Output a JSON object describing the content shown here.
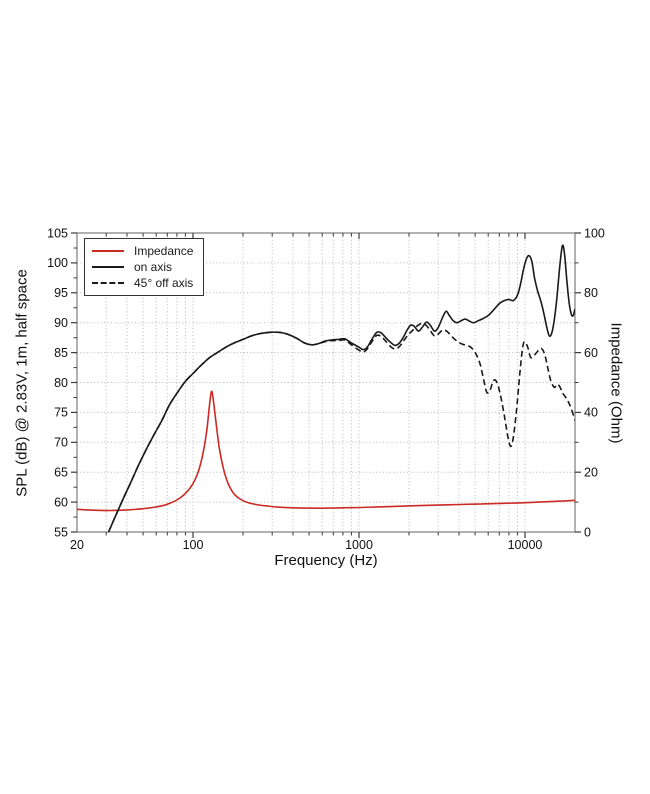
{
  "chart_data": {
    "type": "line",
    "title": "",
    "xlabel": "Frequency (Hz)",
    "ylabel_left": "SPL (dB) @ 2.83V, 1m, half space",
    "ylabel_right": "Impedance (Ohm)",
    "x_scale": "log",
    "xlim": [
      20,
      20000
    ],
    "ylim_left": [
      55,
      105
    ],
    "ylim_right": [
      0,
      100
    ],
    "x_ticks_major": [
      20,
      100,
      1000,
      10000
    ],
    "x_tick_labels": [
      "20",
      "100",
      "1000",
      "10000"
    ],
    "y_ticks_left": [
      55,
      60,
      65,
      70,
      75,
      80,
      85,
      90,
      95,
      100,
      105
    ],
    "y_tick_labels_left": [
      "55",
      "60",
      "65",
      "70",
      "75",
      "80",
      "85",
      "90",
      "95",
      "100",
      "105"
    ],
    "y_ticks_right": [
      0,
      20,
      40,
      60,
      80,
      100
    ],
    "y_tick_labels_right": [
      "0",
      "20",
      "40",
      "60",
      "80",
      "100"
    ],
    "grid": "dotted",
    "legend": {
      "position": "top-left",
      "entries": [
        {
          "label": "Impedance",
          "style": "red-solid"
        },
        {
          "label": "on axis",
          "style": "black-solid"
        },
        {
          "label": "45° off axis",
          "style": "black-dashed"
        }
      ]
    },
    "series": [
      {
        "name": "Impedance",
        "axis": "right",
        "unit": "Ohm",
        "color": "#cb2a25",
        "style": "solid",
        "points": [
          [
            20,
            7.6
          ],
          [
            25,
            7.3
          ],
          [
            32,
            7.2
          ],
          [
            40,
            7.4
          ],
          [
            50,
            7.8
          ],
          [
            60,
            8.4
          ],
          [
            70,
            9.3
          ],
          [
            80,
            10.7
          ],
          [
            90,
            12.9
          ],
          [
            100,
            16.2
          ],
          [
            108,
            20.5
          ],
          [
            115,
            26.5
          ],
          [
            121,
            34
          ],
          [
            126,
            43
          ],
          [
            129,
            47
          ],
          [
            132,
            45
          ],
          [
            137,
            37.5
          ],
          [
            144,
            28
          ],
          [
            152,
            21.5
          ],
          [
            162,
            16.5
          ],
          [
            175,
            13
          ],
          [
            190,
            11.2
          ],
          [
            210,
            10
          ],
          [
            240,
            9.2
          ],
          [
            280,
            8.7
          ],
          [
            330,
            8.3
          ],
          [
            400,
            8.1
          ],
          [
            500,
            8.0
          ],
          [
            650,
            8.0
          ],
          [
            800,
            8.1
          ],
          [
            1000,
            8.2
          ],
          [
            1300,
            8.4
          ],
          [
            1700,
            8.6
          ],
          [
            2200,
            8.8
          ],
          [
            3000,
            9.0
          ],
          [
            4000,
            9.2
          ],
          [
            5500,
            9.4
          ],
          [
            7500,
            9.6
          ],
          [
            10000,
            9.8
          ],
          [
            13000,
            10.1
          ],
          [
            16000,
            10.3
          ],
          [
            20000,
            10.6
          ]
        ]
      },
      {
        "name": "on axis",
        "axis": "left",
        "unit": "dB",
        "color": "#1a1a1a",
        "style": "solid",
        "points": [
          [
            31,
            55
          ],
          [
            34,
            57.6
          ],
          [
            38,
            60.6
          ],
          [
            42,
            63.2
          ],
          [
            47,
            66.2
          ],
          [
            52,
            68.7
          ],
          [
            58,
            71.2
          ],
          [
            65,
            73.7
          ],
          [
            72,
            76.2
          ],
          [
            80,
            78.2
          ],
          [
            90,
            80.2
          ],
          [
            100,
            81.5
          ],
          [
            112,
            82.9
          ],
          [
            125,
            84.1
          ],
          [
            140,
            85.0
          ],
          [
            160,
            86.0
          ],
          [
            180,
            86.7
          ],
          [
            200,
            87.2
          ],
          [
            225,
            87.8
          ],
          [
            255,
            88.2
          ],
          [
            290,
            88.4
          ],
          [
            330,
            88.4
          ],
          [
            370,
            88.1
          ],
          [
            420,
            87.4
          ],
          [
            470,
            86.6
          ],
          [
            520,
            86.3
          ],
          [
            570,
            86.5
          ],
          [
            620,
            86.9
          ],
          [
            680,
            87.1
          ],
          [
            750,
            87.2
          ],
          [
            820,
            87.3
          ],
          [
            900,
            86.6
          ],
          [
            1000,
            85.9
          ],
          [
            1060,
            85.5
          ],
          [
            1120,
            85.9
          ],
          [
            1200,
            87.3
          ],
          [
            1280,
            88.4
          ],
          [
            1360,
            88.3
          ],
          [
            1450,
            87.5
          ],
          [
            1550,
            86.7
          ],
          [
            1650,
            86.2
          ],
          [
            1750,
            86.6
          ],
          [
            1850,
            87.6
          ],
          [
            1950,
            88.8
          ],
          [
            2050,
            89.6
          ],
          [
            2150,
            89.4
          ],
          [
            2280,
            88.6
          ],
          [
            2400,
            89.2
          ],
          [
            2550,
            90.1
          ],
          [
            2700,
            89.5
          ],
          [
            2850,
            88.6
          ],
          [
            3000,
            89.2
          ],
          [
            3200,
            91.0
          ],
          [
            3350,
            91.9
          ],
          [
            3500,
            91.2
          ],
          [
            3700,
            90.3
          ],
          [
            3900,
            90.0
          ],
          [
            4100,
            90.3
          ],
          [
            4350,
            90.6
          ],
          [
            4600,
            90.3
          ],
          [
            4900,
            90.0
          ],
          [
            5200,
            90.3
          ],
          [
            5600,
            90.7
          ],
          [
            6000,
            91.2
          ],
          [
            6500,
            92.2
          ],
          [
            7000,
            93.2
          ],
          [
            7500,
            93.7
          ],
          [
            8000,
            93.9
          ],
          [
            8500,
            93.7
          ],
          [
            9000,
            94.6
          ],
          [
            9400,
            96.5
          ],
          [
            9800,
            99.0
          ],
          [
            10200,
            100.7
          ],
          [
            10600,
            101.2
          ],
          [
            11000,
            100.2
          ],
          [
            11400,
            97.5
          ],
          [
            11900,
            95.3
          ],
          [
            12400,
            93.8
          ],
          [
            13000,
            91.5
          ],
          [
            13500,
            89.3
          ],
          [
            14000,
            87.8
          ],
          [
            14500,
            88.3
          ],
          [
            15000,
            90.5
          ],
          [
            15600,
            94.5
          ],
          [
            16200,
            99.5
          ],
          [
            16800,
            102.9
          ],
          [
            17300,
            101.5
          ],
          [
            17800,
            97.5
          ],
          [
            18400,
            93.5
          ],
          [
            19000,
            91.4
          ],
          [
            19500,
            91.2
          ],
          [
            20000,
            92.3
          ]
        ]
      },
      {
        "name": "45° off axis",
        "axis": "left",
        "unit": "dB",
        "color": "#1a1a1a",
        "style": "dashed",
        "points": [
          [
            31,
            55
          ],
          [
            34,
            57.6
          ],
          [
            38,
            60.6
          ],
          [
            42,
            63.2
          ],
          [
            47,
            66.2
          ],
          [
            52,
            68.7
          ],
          [
            58,
            71.2
          ],
          [
            65,
            73.7
          ],
          [
            72,
            76.2
          ],
          [
            80,
            78.2
          ],
          [
            90,
            80.2
          ],
          [
            100,
            81.5
          ],
          [
            112,
            82.9
          ],
          [
            125,
            84.1
          ],
          [
            140,
            85.0
          ],
          [
            160,
            86.0
          ],
          [
            180,
            86.7
          ],
          [
            200,
            87.2
          ],
          [
            225,
            87.8
          ],
          [
            255,
            88.2
          ],
          [
            290,
            88.4
          ],
          [
            330,
            88.4
          ],
          [
            370,
            88.1
          ],
          [
            420,
            87.4
          ],
          [
            470,
            86.6
          ],
          [
            520,
            86.3
          ],
          [
            570,
            86.5
          ],
          [
            620,
            86.8
          ],
          [
            680,
            87.0
          ],
          [
            750,
            87.0
          ],
          [
            820,
            87.1
          ],
          [
            900,
            86.3
          ],
          [
            1000,
            85.4
          ],
          [
            1060,
            85.1
          ],
          [
            1120,
            85.6
          ],
          [
            1200,
            86.9
          ],
          [
            1280,
            87.9
          ],
          [
            1360,
            87.7
          ],
          [
            1450,
            86.9
          ],
          [
            1550,
            86.0
          ],
          [
            1650,
            85.6
          ],
          [
            1750,
            86.0
          ],
          [
            1850,
            86.9
          ],
          [
            1950,
            87.8
          ],
          [
            2100,
            88.7
          ],
          [
            2250,
            89.5
          ],
          [
            2400,
            89.9
          ],
          [
            2550,
            89.5
          ],
          [
            2700,
            88.6
          ],
          [
            2850,
            87.8
          ],
          [
            3000,
            88.1
          ],
          [
            3200,
            88.8
          ],
          [
            3400,
            88.5
          ],
          [
            3650,
            87.6
          ],
          [
            3900,
            86.9
          ],
          [
            4200,
            86.4
          ],
          [
            4500,
            86.2
          ],
          [
            4800,
            85.7
          ],
          [
            5100,
            84.6
          ],
          [
            5400,
            82.8
          ],
          [
            5700,
            79.8
          ],
          [
            5900,
            78.3
          ],
          [
            6150,
            78.7
          ],
          [
            6450,
            80.3
          ],
          [
            6750,
            80.1
          ],
          [
            7100,
            78.0
          ],
          [
            7500,
            74.5
          ],
          [
            7900,
            70.8
          ],
          [
            8200,
            69.3
          ],
          [
            8500,
            70.8
          ],
          [
            8900,
            75.5
          ],
          [
            9300,
            81.5
          ],
          [
            9700,
            86.0
          ],
          [
            10000,
            86.8
          ],
          [
            10400,
            85.8
          ],
          [
            10800,
            84.2
          ],
          [
            11300,
            84.5
          ],
          [
            11900,
            85.2
          ],
          [
            12500,
            85.7
          ],
          [
            13100,
            84.8
          ],
          [
            13700,
            82.5
          ],
          [
            14300,
            80.3
          ],
          [
            15000,
            79.2
          ],
          [
            15600,
            79.7
          ],
          [
            16200,
            79.3
          ],
          [
            16800,
            78.3
          ],
          [
            17500,
            77.6
          ],
          [
            18200,
            76.8
          ],
          [
            19000,
            75.6
          ],
          [
            20000,
            73.7
          ]
        ]
      }
    ]
  },
  "colors": {
    "background": "#ffffff",
    "frame": "#7d7d7d",
    "tick": "#3a3a3a",
    "tick_label": "#111111",
    "grid": "#b8b8b8",
    "impedance_red": "#cb2a25",
    "curve_black": "#1a1a1a"
  }
}
